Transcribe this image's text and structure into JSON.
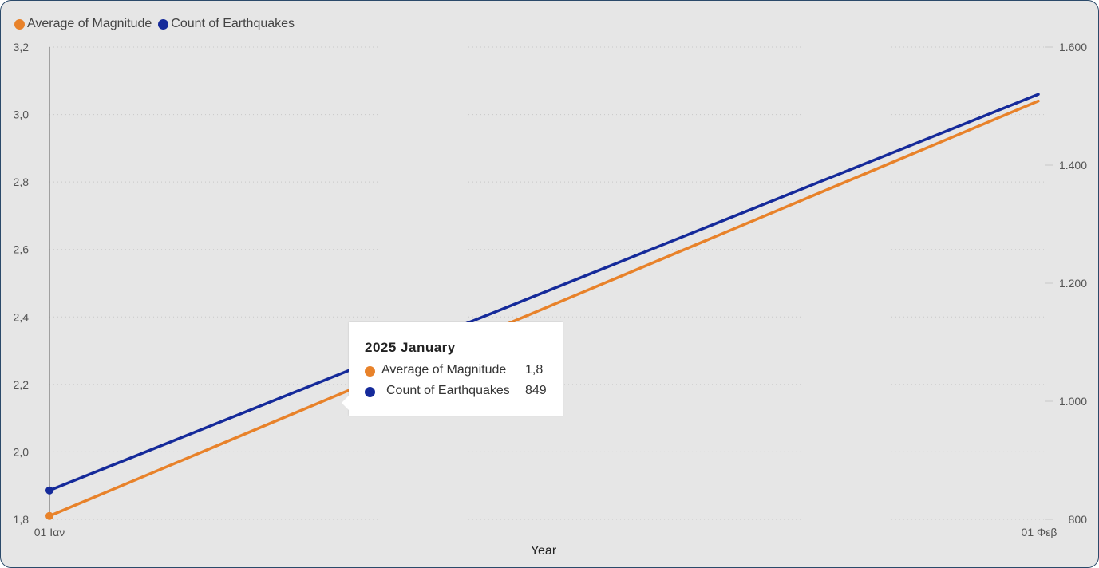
{
  "colors": {
    "magnitude": "#E8822A",
    "count": "#152A9A"
  },
  "legend": {
    "magnitude_label": "Average of Magnitude",
    "count_label": "Count of Earthquakes"
  },
  "chart_data": {
    "type": "line",
    "x": [
      "01 Ιαν",
      "01 Φεβ"
    ],
    "xlabel": "Year",
    "left_axis": {
      "ylim": [
        1.8,
        3.2
      ],
      "ticks": [
        "1,8",
        "2,0",
        "2,2",
        "2,4",
        "2,6",
        "2,8",
        "3,0",
        "3,2"
      ]
    },
    "right_axis": {
      "ylim": [
        800,
        1600
      ],
      "ticks": [
        "800",
        "1.000",
        "1.200",
        "1.400",
        "1.600"
      ]
    },
    "series": [
      {
        "name": "Average of Magnitude",
        "axis": "left",
        "values": [
          1.81,
          3.04
        ]
      },
      {
        "name": "Count of Earthquakes",
        "axis": "right",
        "values": [
          849,
          1520
        ]
      }
    ],
    "grid": true,
    "legend_position": "top-left"
  },
  "tooltip": {
    "title": "2025 January",
    "rows": [
      {
        "label": "Average of Magnitude",
        "value": "1,8"
      },
      {
        "label": "Count of Earthquakes",
        "value": "849"
      }
    ]
  }
}
